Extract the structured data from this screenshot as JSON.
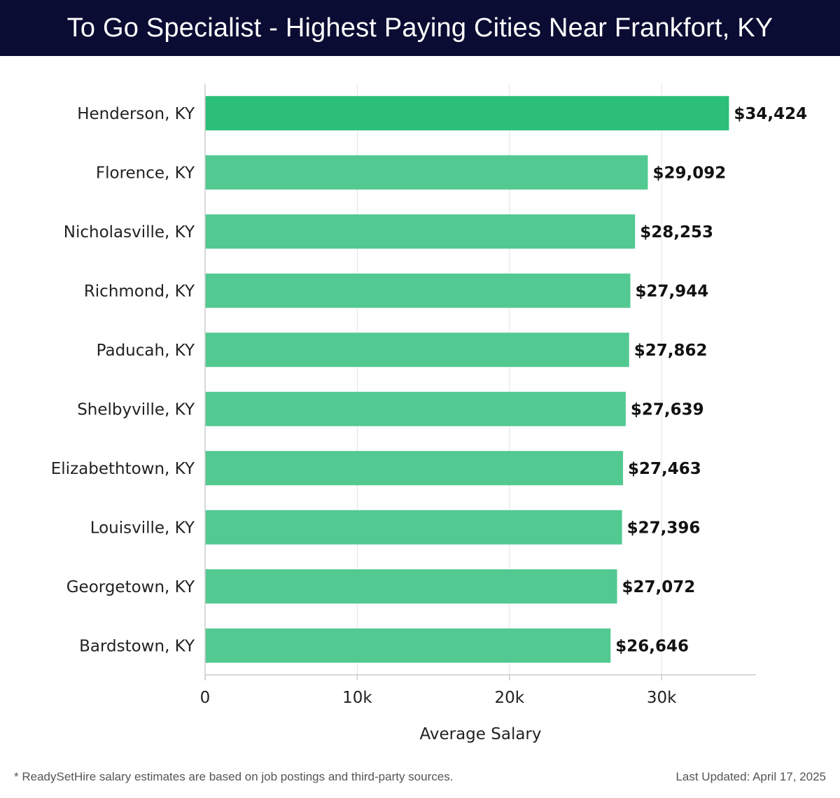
{
  "header": {
    "title": "To Go Specialist - Highest Paying Cities Near Frankfort, KY"
  },
  "chart_data": {
    "type": "bar",
    "orientation": "horizontal",
    "title": "To Go Specialist - Highest Paying Cities Near Frankfort, KY",
    "xlabel": "Average Salary",
    "ylabel": "",
    "xlim": [
      0,
      36200
    ],
    "xticks": [
      0,
      10000,
      20000,
      30000
    ],
    "xtick_labels": [
      "0",
      "10k",
      "20k",
      "30k"
    ],
    "grid": true,
    "categories": [
      "Henderson, KY",
      "Florence, KY",
      "Nicholasville, KY",
      "Richmond, KY",
      "Paducah, KY",
      "Shelbyville, KY",
      "Elizabethtown, KY",
      "Louisville, KY",
      "Georgetown, KY",
      "Bardstown, KY"
    ],
    "values": [
      34424,
      29092,
      28253,
      27944,
      27862,
      27639,
      27463,
      27396,
      27072,
      26646
    ],
    "value_labels": [
      "$34,424",
      "$29,092",
      "$28,253",
      "$27,944",
      "$27,862",
      "$27,639",
      "$27,463",
      "$27,396",
      "$27,072",
      "$26,646"
    ],
    "colors": {
      "highlight": "#2bbf77",
      "bar": "#52c991",
      "grid": "#e3e3e3",
      "axis": "#cccccc"
    }
  },
  "footer": {
    "note": "* ReadySetHire salary estimates are based on job postings and third-party sources.",
    "updated": "Last Updated: April 17, 2025"
  }
}
